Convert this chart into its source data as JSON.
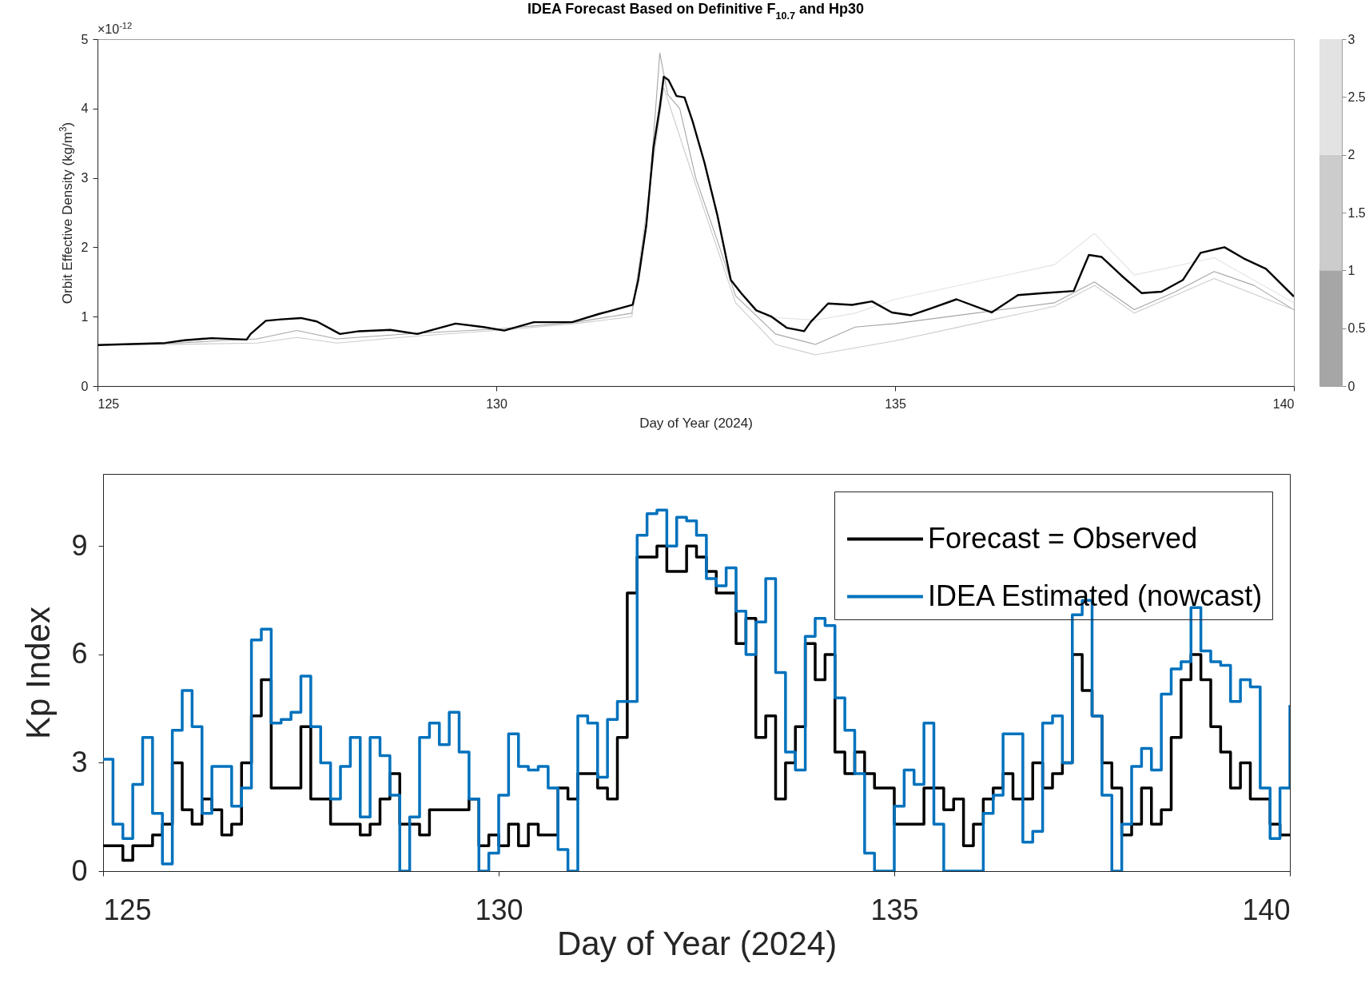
{
  "chart_data": [
    {
      "type": "line",
      "title": "IDEA Forecast Based on Definitive F$_{10.7}$ and Hp30",
      "xlabel": "Day of Year (2024)",
      "ylabel": "Orbit Effective Density (kg/m$^{3}$)",
      "annotations": [
        "×10$^{-12}$"
      ],
      "xlim": [
        125,
        140
      ],
      "xticks": [
        125,
        130,
        135,
        140
      ],
      "ylim": [
        0,
        5
      ],
      "yticks": [
        0,
        1,
        2,
        3,
        4,
        5
      ],
      "clim": [
        0,
        3
      ],
      "cticks": [
        0,
        0.5,
        1,
        1.5,
        2,
        2.5,
        3
      ],
      "grid": false,
      "legend": false,
      "series": [
        {
          "color": "#a6a6a6",
          "x": [
            125,
            126,
            127,
            127.5,
            128,
            129,
            130,
            131,
            131.7,
            131.9,
            132.05,
            132.15,
            132.3,
            132.5,
            132.8,
            133,
            133.5,
            134,
            134.5,
            135,
            136,
            137,
            137.5,
            138,
            138.5,
            139,
            139.5,
            140
          ],
          "values": [
            0.59,
            0.62,
            0.68,
            0.8,
            0.68,
            0.76,
            0.82,
            0.92,
            1.05,
            2.5,
            4.8,
            4.2,
            4.0,
            3.0,
            2.0,
            1.3,
            0.75,
            0.6,
            0.85,
            0.9,
            1.05,
            1.2,
            1.5,
            1.1,
            1.35,
            1.65,
            1.45,
            1.1
          ]
        },
        {
          "color": "#cccccc",
          "x": [
            125,
            126,
            127,
            127.5,
            128,
            129,
            130,
            131,
            131.7,
            132,
            132.1,
            132.5,
            133,
            133.5,
            134,
            134.5,
            135,
            136,
            137,
            137.5,
            138,
            139,
            140
          ],
          "values": [
            0.59,
            0.6,
            0.62,
            0.7,
            0.62,
            0.72,
            0.8,
            0.9,
            1.0,
            3.5,
            4.3,
            2.9,
            1.2,
            0.6,
            0.45,
            0.55,
            0.65,
            0.9,
            1.15,
            1.45,
            1.05,
            1.55,
            1.1
          ]
        },
        {
          "color": "#e3e3e3",
          "x": [
            133.3,
            134,
            134.5,
            135,
            136,
            137,
            137.5,
            138,
            139,
            140
          ],
          "values": [
            1.0,
            0.95,
            1.05,
            1.25,
            1.5,
            1.75,
            2.2,
            1.6,
            1.85,
            1.2
          ]
        },
        {
          "color": "#000000",
          "x": [
            125,
            125.85,
            126.09,
            126.43,
            126.87,
            126.92,
            127.11,
            127.3,
            127.55,
            127.75,
            128.04,
            128.28,
            128.67,
            129.01,
            129.49,
            129.84,
            130.1,
            130.47,
            130.95,
            131.29,
            131.71,
            131.78,
            131.88,
            131.97,
            132.05,
            132.1,
            132.16,
            132.26,
            132.36,
            132.46,
            132.61,
            132.77,
            132.94,
            133.07,
            133.26,
            133.45,
            133.64,
            133.86,
            133.94,
            134.16,
            134.46,
            134.71,
            134.96,
            135.2,
            135.45,
            135.77,
            136.21,
            136.54,
            136.86,
            137.24,
            137.32,
            137.43,
            137.59,
            137.84,
            138.09,
            138.34,
            138.61,
            138.83,
            139.13,
            139.37,
            139.65,
            140
          ],
          "values": [
            0.59,
            0.62,
            0.66,
            0.69,
            0.67,
            0.75,
            0.94,
            0.96,
            0.98,
            0.93,
            0.75,
            0.79,
            0.81,
            0.75,
            0.9,
            0.85,
            0.8,
            0.92,
            0.92,
            1.04,
            1.17,
            1.53,
            2.31,
            3.43,
            4.02,
            4.46,
            4.41,
            4.18,
            4.16,
            3.82,
            3.22,
            2.47,
            1.53,
            1.34,
            1.09,
            1.0,
            0.84,
            0.79,
            0.92,
            1.19,
            1.17,
            1.22,
            1.06,
            1.02,
            1.12,
            1.25,
            1.06,
            1.31,
            1.34,
            1.37,
            1.59,
            1.89,
            1.86,
            1.59,
            1.34,
            1.36,
            1.53,
            1.92,
            2.0,
            1.84,
            1.69,
            1.29
          ]
        }
      ]
    },
    {
      "type": "step",
      "xlabel": "Day of Year (2024)",
      "ylabel": "Kp Index",
      "xlim": [
        125,
        140
      ],
      "xticks": [
        125,
        130,
        135,
        140
      ],
      "ylim": [
        0,
        11
      ],
      "yticks": [
        0,
        3,
        6,
        9
      ],
      "grid": false,
      "legend": "top right",
      "series": [
        {
          "name": "Forecast = Observed",
          "color": "#000000",
          "x": [
            125,
            125.25,
            125.375,
            125.625,
            125.75,
            125.875,
            126,
            126.125,
            126.25,
            126.375,
            126.5,
            126.625,
            126.75,
            126.875,
            127,
            127.125,
            127.5,
            127.625,
            127.875,
            128.25,
            128.375,
            128.5,
            128.625,
            128.75,
            129,
            129.125,
            129.625,
            129.75,
            129.875,
            130,
            130.125,
            130.25,
            130.375,
            130.5,
            130.75,
            130.875,
            131,
            131.25,
            131.375,
            131.5,
            131.625,
            131.75,
            132,
            132.125,
            132.375,
            132.5,
            132.625,
            132.75,
            133,
            133.125,
            133.25,
            133.375,
            133.5,
            133.625,
            133.75,
            133.875,
            134,
            134.125,
            134.25,
            134.375,
            134.5,
            134.625,
            134.75,
            135,
            135.375,
            135.625,
            135.75,
            135.875,
            136,
            136.125,
            136.25,
            136.375,
            136.5,
            136.75,
            136.875,
            137,
            137.125,
            137.25,
            137.375,
            137.5,
            137.625,
            137.75,
            137.875,
            138,
            138.125,
            138.25,
            138.375,
            138.5,
            138.625,
            138.75,
            138.875,
            139,
            139.125,
            139.25,
            139.375,
            139.5,
            139.75,
            139.875,
            140
          ],
          "values": [
            0.7,
            0.3,
            0.7,
            1.0,
            1.3,
            3.0,
            1.7,
            1.3,
            2.0,
            1.7,
            1.0,
            1.3,
            3.0,
            4.3,
            5.3,
            2.3,
            4.0,
            2.0,
            1.3,
            1.0,
            1.3,
            2.0,
            2.7,
            1.3,
            1.0,
            1.7,
            2.0,
            0.7,
            1.0,
            0.7,
            1.3,
            0.7,
            1.3,
            1.0,
            2.3,
            2.0,
            2.7,
            2.3,
            2.0,
            3.7,
            7.7,
            8.7,
            9.0,
            8.3,
            9.0,
            8.7,
            8.3,
            7.7,
            6.3,
            7.0,
            3.7,
            4.3,
            2.0,
            3.0,
            4.0,
            6.3,
            5.3,
            6.0,
            3.3,
            2.7,
            3.3,
            2.7,
            2.3,
            1.3,
            2.3,
            1.7,
            2.0,
            0.7,
            1.3,
            2.0,
            2.3,
            2.7,
            2.0,
            3.0,
            2.3,
            2.7,
            3.0,
            6.0,
            5.0,
            4.3,
            3.0,
            2.3,
            1.0,
            1.3,
            2.3,
            1.3,
            1.7,
            3.7,
            5.3,
            6.0,
            5.3,
            4.0,
            3.3,
            2.3,
            3.0,
            2.0,
            1.3,
            1.0,
            1.0
          ]
        },
        {
          "name": "IDEA Estimated (nowcast)",
          "color": "#0072bd",
          "x": [
            125,
            125.125,
            125.25,
            125.375,
            125.5,
            125.625,
            125.75,
            125.875,
            126,
            126.125,
            126.25,
            126.375,
            126.5,
            126.625,
            126.75,
            126.875,
            127,
            127.125,
            127.25,
            127.375,
            127.5,
            127.625,
            127.75,
            127.875,
            128,
            128.125,
            128.25,
            128.375,
            128.5,
            128.625,
            128.75,
            128.875,
            129,
            129.125,
            129.25,
            129.375,
            129.5,
            129.625,
            129.75,
            129.875,
            130,
            130.125,
            130.25,
            130.375,
            130.5,
            130.625,
            130.75,
            130.875,
            131,
            131.125,
            131.25,
            131.375,
            131.5,
            131.625,
            131.75,
            131.875,
            132,
            132.125,
            132.25,
            132.375,
            132.5,
            132.625,
            132.75,
            132.875,
            133,
            133.125,
            133.25,
            133.375,
            133.5,
            133.625,
            133.75,
            133.875,
            134,
            134.125,
            134.25,
            134.375,
            134.5,
            134.625,
            134.75,
            134.875,
            135,
            135.125,
            135.25,
            135.375,
            135.5,
            135.625,
            135.75,
            135.875,
            136,
            136.125,
            136.25,
            136.375,
            136.5,
            136.625,
            136.75,
            136.875,
            137,
            137.125,
            137.25,
            137.375,
            137.5,
            137.625,
            137.75,
            137.875,
            138,
            138.125,
            138.25,
            138.375,
            138.5,
            138.625,
            138.75,
            138.875,
            139,
            139.125,
            139.25,
            139.375,
            139.5,
            139.625,
            139.75,
            139.875,
            140
          ],
          "values": [
            3.1,
            1.3,
            0.9,
            2.4,
            3.7,
            1.6,
            0.2,
            3.9,
            5.0,
            4.0,
            1.6,
            2.9,
            2.9,
            1.8,
            2.3,
            6.4,
            6.7,
            4.1,
            4.2,
            4.4,
            5.4,
            4.0,
            3.0,
            2.0,
            2.9,
            3.7,
            1.5,
            3.7,
            3.2,
            2.1,
            0,
            1.5,
            3.7,
            4.1,
            3.5,
            4.4,
            3.3,
            2.0,
            0,
            0.5,
            2.1,
            3.8,
            2.9,
            2.8,
            2.9,
            2.3,
            0.6,
            0,
            4.3,
            4.1,
            2.6,
            4.2,
            4.7,
            4.7,
            9.3,
            9.9,
            10.0,
            9.0,
            9.8,
            9.7,
            9.3,
            8.1,
            7.9,
            8.4,
            7.2,
            6.0,
            6.9,
            8.1,
            5.5,
            3.3,
            2.8,
            6.5,
            7.0,
            6.8,
            4.8,
            3.9,
            2.7,
            0.5,
            0,
            0,
            1.8,
            2.8,
            2.4,
            4.1,
            1.3,
            0,
            0,
            0,
            0,
            1.6,
            2.1,
            3.8,
            3.8,
            0.8,
            1.1,
            4.1,
            4.3,
            3.0,
            7.1,
            7.5,
            4.3,
            2.1,
            0,
            1.3,
            2.9,
            3.4,
            2.8,
            4.9,
            5.6,
            5.8,
            7.3,
            6.1,
            5.8,
            5.7,
            4.7,
            5.3,
            5.1,
            2.3,
            0.9,
            2.3,
            4.6
          ]
        }
      ]
    }
  ]
}
